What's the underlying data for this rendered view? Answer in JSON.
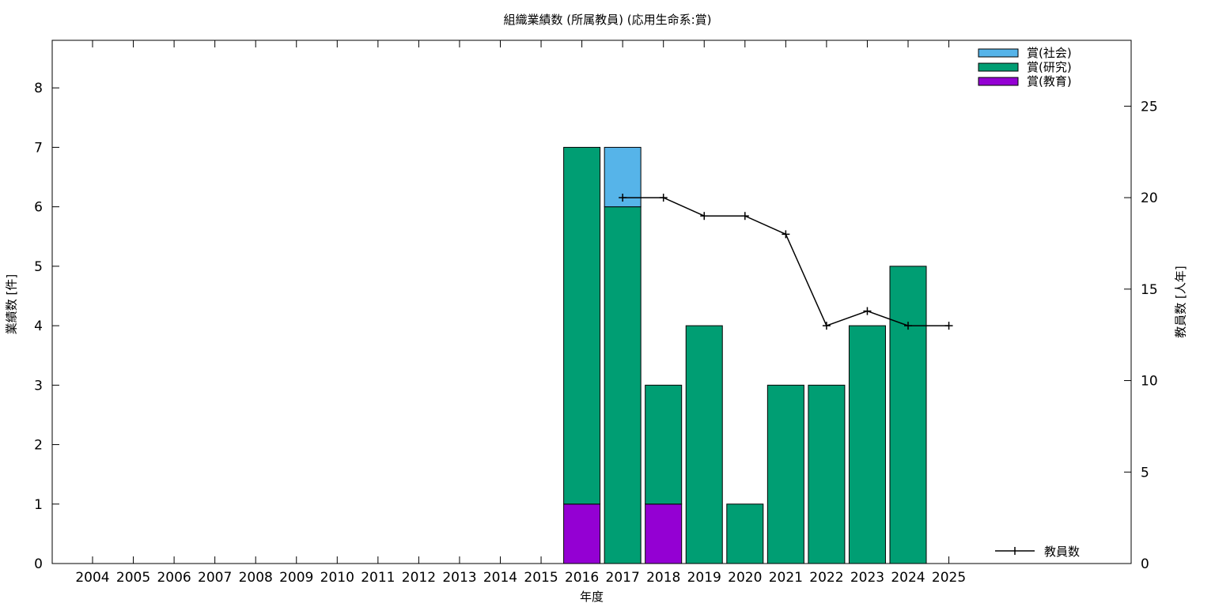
{
  "chart_data": {
    "type": "bar",
    "title": "組織業績数 (所属教員) (応用生命系:賞)",
    "xlabel": "年度",
    "ylabel": "業績数 [件]",
    "y2label": "教員数 [人年]",
    "categories": [
      "2004",
      "2005",
      "2006",
      "2007",
      "2008",
      "2009",
      "2010",
      "2011",
      "2012",
      "2013",
      "2014",
      "2015",
      "2016",
      "2017",
      "2018",
      "2019",
      "2020",
      "2021",
      "2022",
      "2023",
      "2024",
      "2025"
    ],
    "ylim": [
      0,
      8.8
    ],
    "y2lim": [
      0,
      28.6
    ],
    "yticks": [
      0,
      1,
      2,
      3,
      4,
      5,
      6,
      7,
      8
    ],
    "y2ticks": [
      0,
      5,
      10,
      15,
      20,
      25
    ],
    "stacked": true,
    "series": [
      {
        "name": "賞(教育)",
        "color": "#9400d3",
        "values": [
          0,
          0,
          0,
          0,
          0,
          0,
          0,
          0,
          0,
          0,
          0,
          0,
          1,
          0,
          1,
          0,
          0,
          0,
          0,
          0,
          0,
          0
        ]
      },
      {
        "name": "賞(研究)",
        "color": "#009e73",
        "values": [
          0,
          0,
          0,
          0,
          0,
          0,
          0,
          0,
          0,
          0,
          0,
          0,
          6,
          6,
          2,
          4,
          1,
          3,
          3,
          4,
          5,
          0
        ]
      },
      {
        "name": "賞(社会)",
        "color": "#56b4e9",
        "values": [
          0,
          0,
          0,
          0,
          0,
          0,
          0,
          0,
          0,
          0,
          0,
          0,
          0,
          1,
          0,
          0,
          0,
          0,
          0,
          0,
          0,
          0
        ]
      }
    ],
    "line_series": {
      "name": "教員数",
      "axis": "right",
      "color": "#000000",
      "x": [
        "2017",
        "2018",
        "2019",
        "2020",
        "2021",
        "2022",
        "2023",
        "2024",
        "2025"
      ],
      "values": [
        20,
        20,
        19,
        19,
        18,
        13,
        13.8,
        13,
        13
      ]
    },
    "legend_placement": "top-right",
    "grid": false
  }
}
